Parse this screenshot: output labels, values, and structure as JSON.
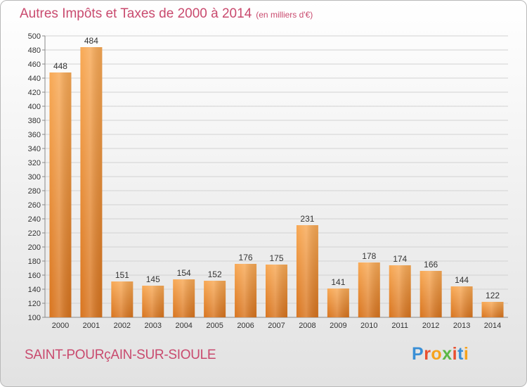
{
  "header": {
    "title": "Autres Impôts et Taxes de 2000 à 2014",
    "unit": "(en milliers d'€)"
  },
  "footer": {
    "commune": "SAINT-POURçAIN-SUR-SIOULE",
    "logo": [
      "P",
      "r",
      "o",
      "x",
      "i",
      "t",
      "i"
    ],
    "logo_colors": [
      "#3a8fd6",
      "#e94f2f",
      "#f6a21d",
      "#5bb847",
      "#e94f2f",
      "#3a8fd6",
      "#f6a21d"
    ]
  },
  "chart_data": {
    "type": "bar",
    "categories": [
      "2000",
      "2001",
      "2002",
      "2003",
      "2004",
      "2005",
      "2006",
      "2007",
      "2008",
      "2009",
      "2010",
      "2011",
      "2012",
      "2013",
      "2014"
    ],
    "values": [
      448,
      484,
      151,
      145,
      154,
      152,
      176,
      175,
      231,
      141,
      178,
      174,
      166,
      144,
      122
    ],
    "ylim": [
      100,
      500
    ],
    "yticks": [
      "100",
      "120",
      "140",
      "160",
      "180",
      "200",
      "220",
      "240",
      "260",
      "280",
      "300",
      "320",
      "340",
      "360",
      "380",
      "400",
      "420",
      "440",
      "460",
      "480",
      "500"
    ],
    "grid": true,
    "bar_color": "#f0963a"
  }
}
